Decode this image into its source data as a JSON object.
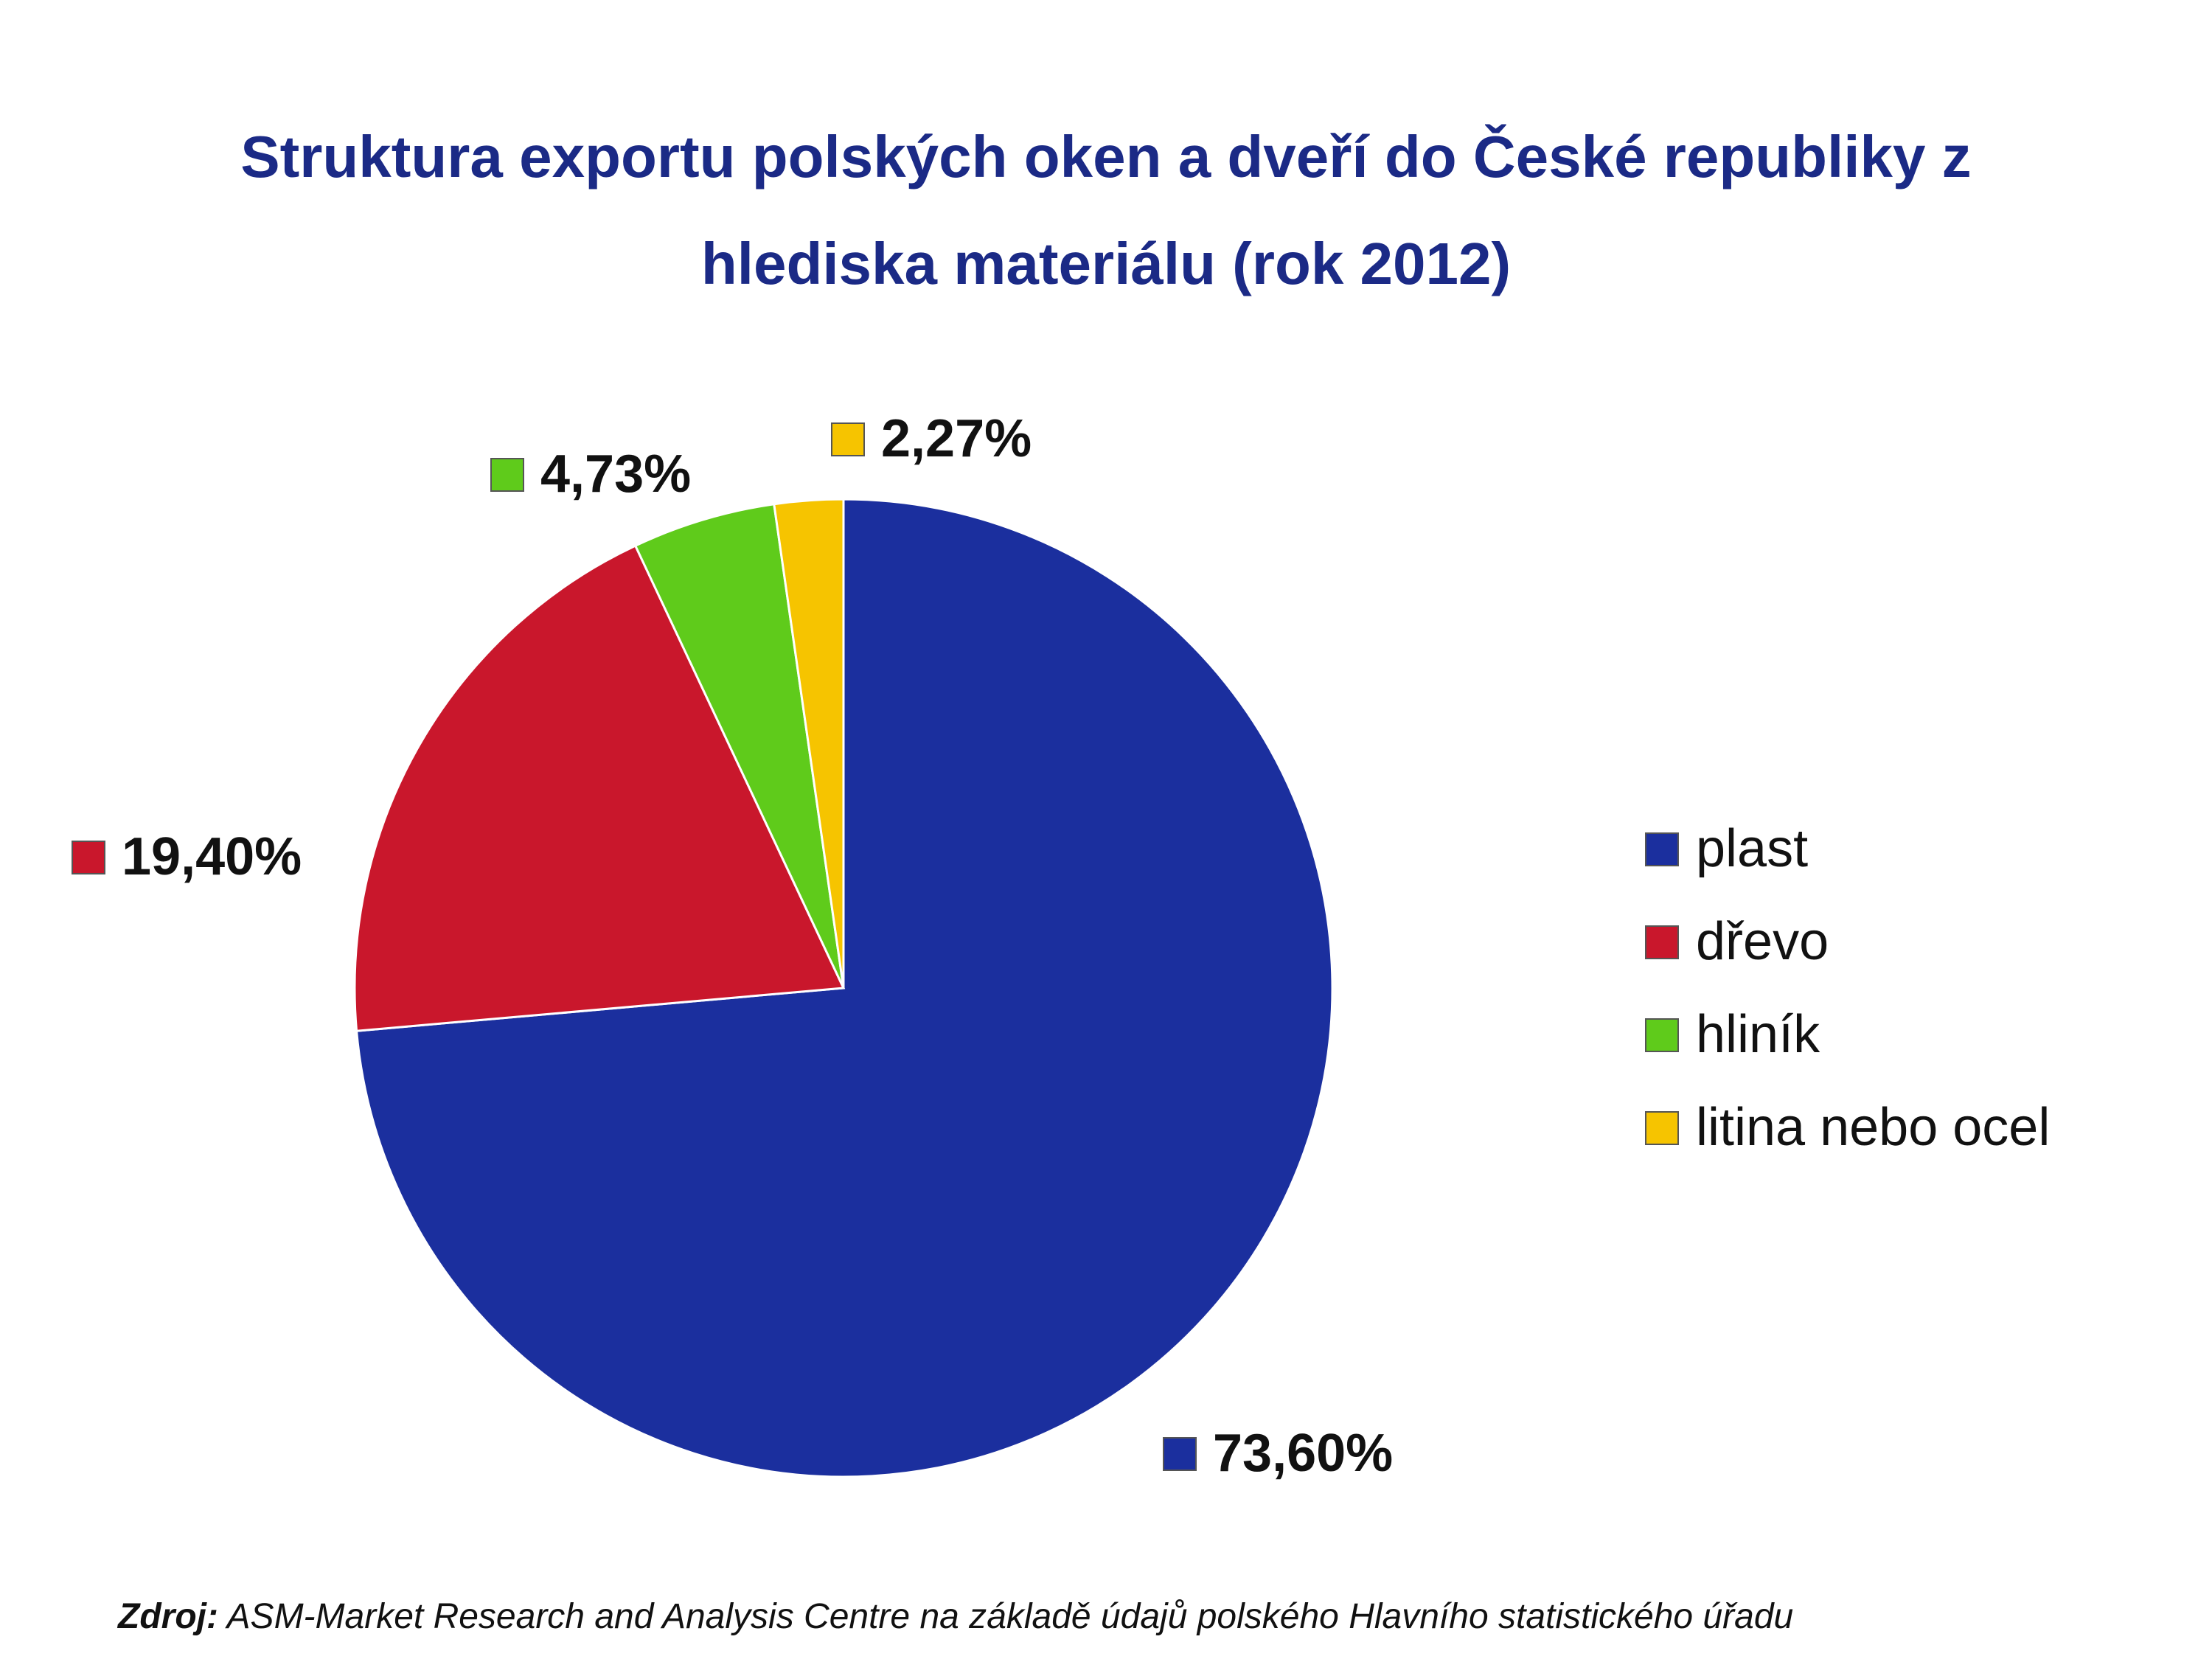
{
  "chart_data": {
    "type": "pie",
    "title": "Struktura exportu polských oken a dveří do České republiky z hlediska materiálu (rok 2012)",
    "categories": [
      "plast",
      "dřevo",
      "hliník",
      "litina nebo ocel"
    ],
    "values": [
      73.6,
      19.4,
      4.73,
      2.27
    ],
    "value_labels": [
      "73,60%",
      "19,40%",
      "4,73%",
      "2,27%"
    ],
    "colors": [
      "#1b2f9e",
      "#c9172c",
      "#5fcb1b",
      "#f6c400"
    ],
    "legend": "right",
    "source_label": "Zdroj:",
    "source_text": "ASM-Market Research and Analysis Centre na základě údajů polského Hlavního statistického úřadu"
  }
}
